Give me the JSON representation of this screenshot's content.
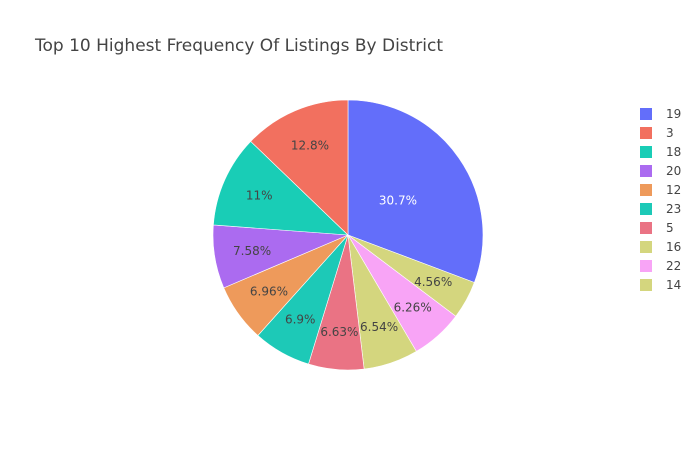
{
  "chart_data": {
    "type": "pie",
    "title": "Top 10 Highest Frequency Of Listings By District",
    "legend_position": "right",
    "direction": "clockwise",
    "slices": [
      {
        "label": "19",
        "percent": 30.7,
        "percent_text": "30.7%",
        "color": "#636efa",
        "text_color": "#ffffff"
      },
      {
        "label": "14",
        "percent": 4.56,
        "percent_text": "4.56%",
        "color": "#d4d67e",
        "text_color": "#444444"
      },
      {
        "label": "22",
        "percent": 6.26,
        "percent_text": "6.26%",
        "color": "#f8a4f6",
        "text_color": "#444444"
      },
      {
        "label": "16",
        "percent": 6.54,
        "percent_text": "6.54%",
        "color": "#d4d67e",
        "text_color": "#444444"
      },
      {
        "label": "5",
        "percent": 6.63,
        "percent_text": "6.63%",
        "color": "#ea7384",
        "text_color": "#444444"
      },
      {
        "label": "23",
        "percent": 6.9,
        "percent_text": "6.9%",
        "color": "#1dc9b7",
        "text_color": "#444444"
      },
      {
        "label": "12",
        "percent": 6.96,
        "percent_text": "6.96%",
        "color": "#ee9a5b",
        "text_color": "#444444"
      },
      {
        "label": "20",
        "percent": 7.58,
        "percent_text": "7.58%",
        "color": "#ab6bf0",
        "text_color": "#444444"
      },
      {
        "label": "18",
        "percent": 11,
        "percent_text": "11%",
        "color": "#19cdb6",
        "text_color": "#444444"
      },
      {
        "label": "3",
        "percent": 12.8,
        "percent_text": "12.8%",
        "color": "#f2705f",
        "text_color": "#444444"
      }
    ],
    "legend_order": [
      "19",
      "3",
      "18",
      "20",
      "12",
      "23",
      "5",
      "16",
      "22",
      "14"
    ]
  }
}
